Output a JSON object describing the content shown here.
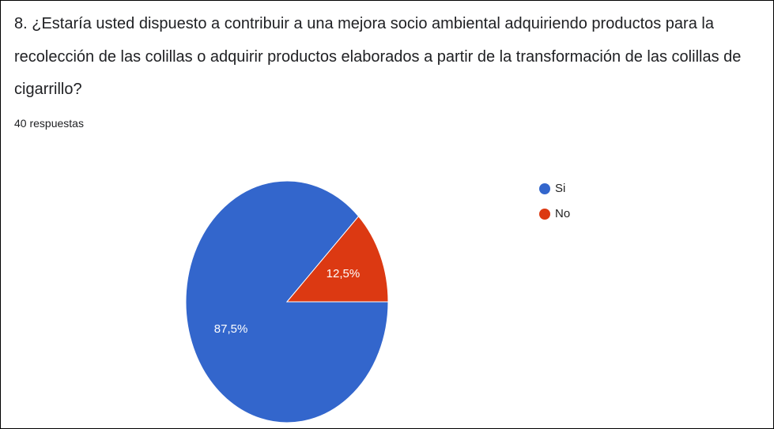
{
  "chart_data": {
    "type": "pie",
    "title": "8. ¿Estaría usted dispuesto a contribuir a una mejora socio ambiental adquiriendo productos para la recolección de las colillas o adquirir productos elaborados a partir de la transformación de las colillas de cigarrillo?",
    "subtitle": "40 respuestas",
    "categories": [
      "Si",
      "No"
    ],
    "values": [
      87.5,
      12.5
    ],
    "value_labels": [
      "87,5%",
      "12,5%"
    ],
    "colors": [
      "#3366cc",
      "#dc3912"
    ],
    "legend": "right"
  }
}
